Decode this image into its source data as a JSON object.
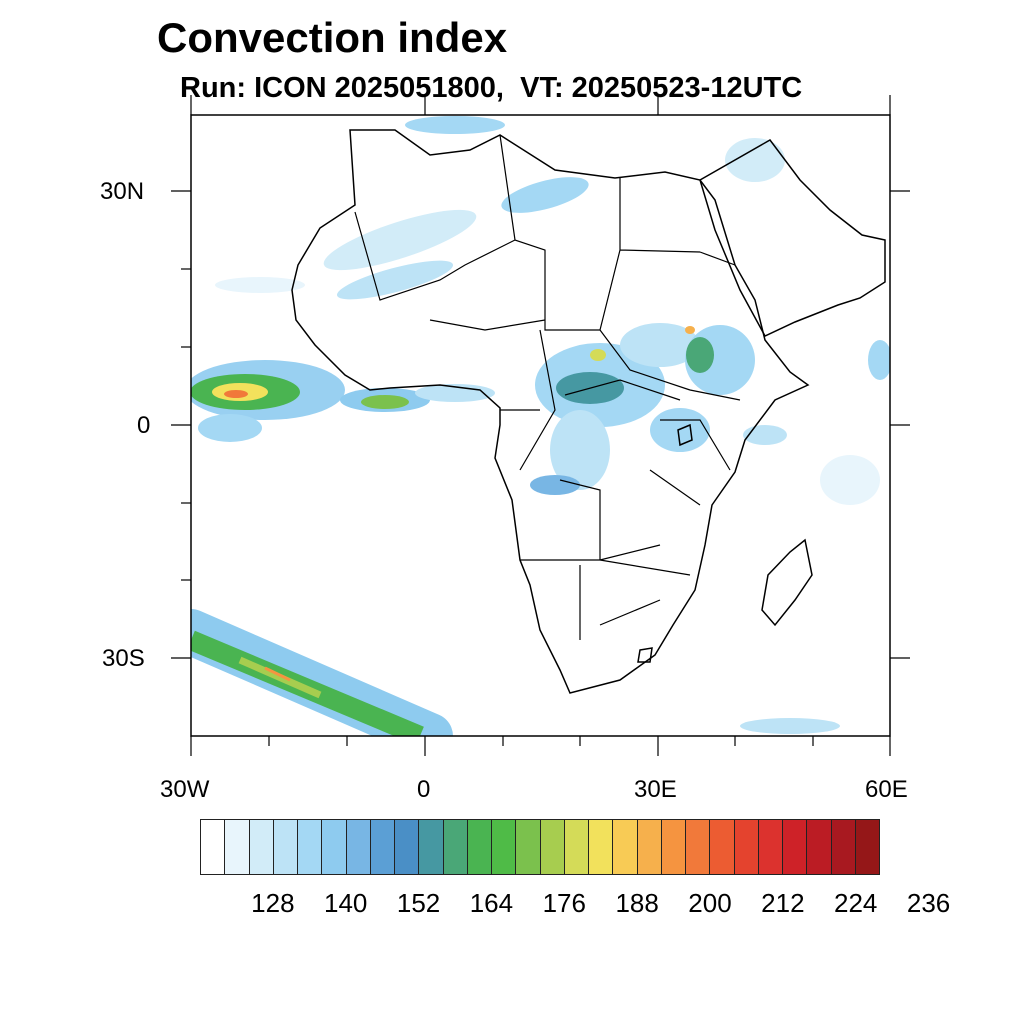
{
  "title": "Convection index",
  "subtitle": "Run: ICON 2025051800,  VT: 20250523-12UTC",
  "axes": {
    "lat_labels": [
      "30N",
      "0",
      "30S"
    ],
    "lon_labels": [
      "30W",
      "0",
      "30E",
      "60E"
    ]
  },
  "colorbar": {
    "labels": [
      "128",
      "140",
      "152",
      "164",
      "176",
      "188",
      "200",
      "212",
      "224",
      "236"
    ],
    "colors": [
      "#ffffff",
      "#e8f5fc",
      "#d2ecf8",
      "#bde3f6",
      "#a4d8f4",
      "#8ecbef",
      "#78b6e4",
      "#5b9fd5",
      "#4a8fc6",
      "#4698a2",
      "#4aa777",
      "#4ab451",
      "#4fbb47",
      "#7bc14d",
      "#a7cd4f",
      "#d4db58",
      "#f2e15c",
      "#f8cb55",
      "#f6b04c",
      "#f59440",
      "#f1793a",
      "#ec5c32",
      "#e4432e",
      "#dc322e",
      "#ce2228",
      "#bb1c24",
      "#a81920",
      "#951718"
    ]
  },
  "chart_data": {
    "type": "heatmap",
    "title": "Convection index",
    "subtitle": "Run: ICON 2025051800,  VT: 20250523-12UTC",
    "lon_range": [
      -30,
      60
    ],
    "lat_range": [
      -40,
      40
    ],
    "x_ticks": [
      "30W",
      "0",
      "30E",
      "60E"
    ],
    "y_ticks": [
      "30N",
      "0",
      "30S"
    ],
    "color_levels": [
      128,
      140,
      152,
      164,
      176,
      188,
      200,
      212,
      224,
      236
    ]
  }
}
